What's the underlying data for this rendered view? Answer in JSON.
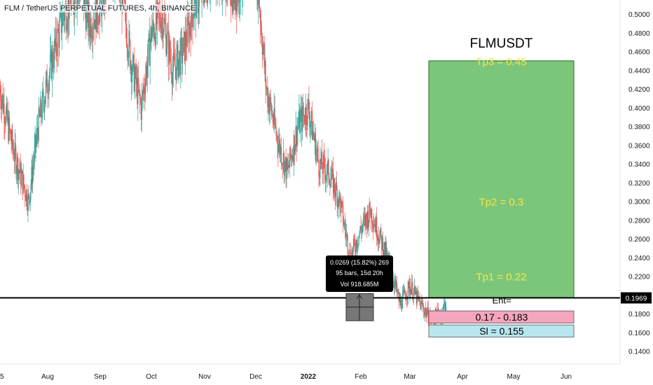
{
  "header": {
    "symbol": "FLM / TetherUS PERPETUAL FUTURES, 4h, BINANCE"
  },
  "colors": {
    "up": "#26a69a",
    "down": "#ef5350",
    "target": "#7cc67c",
    "entry": "#f4a6bd",
    "stop": "#b8e6ee",
    "tp_text": "#f5e642",
    "line": "#000000"
  },
  "chart_data": {
    "type": "candlestick",
    "title": "FLMUSDT",
    "price_axis": {
      "ticks": [
        "0.5000",
        "0.4800",
        "0.4600",
        "0.4400",
        "0.4200",
        "0.4000",
        "0.3800",
        "0.3600",
        "0.3400",
        "0.3200",
        "0.3000",
        "0.2800",
        "0.2600",
        "0.2400",
        "0.2200",
        "0.2000",
        "0.1800",
        "0.1600",
        "0.1400"
      ],
      "current_price": "0.1969",
      "ylim": [
        0.13,
        0.51
      ]
    },
    "time_axis": {
      "ticks": [
        "5",
        "Aug",
        "Sep",
        "Oct",
        "Nov",
        "Dec",
        "2022",
        "Feb",
        "Mar",
        "Apr",
        "May",
        "Jun"
      ]
    },
    "price_path": {
      "x_month": [
        0,
        0.3,
        0.6,
        0.8,
        1,
        1.3,
        1.6,
        1.8,
        2,
        2.2,
        2.4,
        2.6,
        2.8,
        3,
        3.2,
        3.4,
        3.6,
        3.8,
        4,
        4.2,
        4.4,
        4.6,
        4.8,
        5,
        5.2,
        5.4,
        5.6,
        5.8,
        6,
        6.2,
        6.4,
        6.6,
        6.8,
        7,
        7.2,
        7.4,
        7.6,
        7.8,
        8,
        8.2,
        8.4,
        8.6,
        8.7
      ],
      "close": [
        0.42,
        0.35,
        0.3,
        0.38,
        0.43,
        0.5,
        0.53,
        0.49,
        0.51,
        0.55,
        0.53,
        0.45,
        0.4,
        0.48,
        0.5,
        0.44,
        0.46,
        0.51,
        0.53,
        0.55,
        0.54,
        0.52,
        0.55,
        0.56,
        0.42,
        0.37,
        0.33,
        0.38,
        0.4,
        0.34,
        0.33,
        0.3,
        0.24,
        0.27,
        0.29,
        0.26,
        0.23,
        0.19,
        0.21,
        0.19,
        0.175,
        0.18,
        0.195
      ]
    },
    "targets": [
      {
        "label": "Tp3 = 0.45",
        "price": 0.45
      },
      {
        "label": "Tp2 = 0.3",
        "price": 0.3
      },
      {
        "label": "Tp1 = 0.22",
        "price": 0.22
      }
    ],
    "entry": {
      "label_top": "Ent=",
      "label_bottom": "0.17 - 0.183",
      "low": 0.17,
      "high": 0.183
    },
    "stop": {
      "label": "Sl = 0.155",
      "price": 0.155
    },
    "horizontal_line": 0.1969,
    "measure_tooltip": {
      "line1": "0.0269 (15.82%) 269",
      "line2": "95 bars, 15d 20h",
      "line3": "Vol 918.685M"
    }
  }
}
